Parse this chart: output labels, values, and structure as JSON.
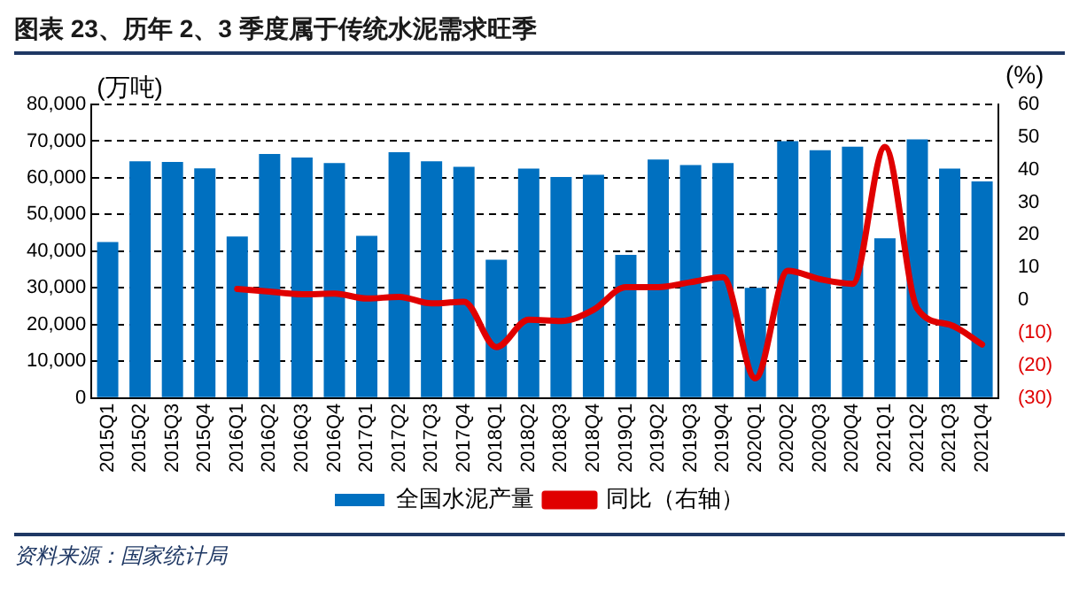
{
  "chart_data": {
    "type": "bar",
    "title": "图表 23、历年 2、3 季度属于传统水泥需求旺季",
    "categories": [
      "2015Q1",
      "2015Q2",
      "2015Q3",
      "2015Q4",
      "2016Q1",
      "2016Q2",
      "2016Q3",
      "2016Q4",
      "2017Q1",
      "2017Q2",
      "2017Q3",
      "2017Q4",
      "2018Q1",
      "2018Q2",
      "2018Q3",
      "2018Q4",
      "2019Q1",
      "2019Q2",
      "2019Q3",
      "2019Q4",
      "2020Q1",
      "2020Q2",
      "2020Q3",
      "2020Q4",
      "2021Q1",
      "2021Q2",
      "2021Q3",
      "2021Q4"
    ],
    "series": [
      {
        "name": "全国水泥产量",
        "color": "#0070c0",
        "values": [
          42500,
          64500,
          64300,
          62600,
          44000,
          66500,
          65500,
          64000,
          44200,
          67000,
          64500,
          63000,
          37700,
          62500,
          60200,
          60800,
          39000,
          65000,
          63500,
          64000,
          30000,
          70000,
          67500,
          68500,
          43500,
          70500,
          62500,
          59000
        ]
      },
      {
        "name": "同比（右轴）",
        "type": "line",
        "axis": "y2",
        "color": "#e00000",
        "values": [
          null,
          null,
          null,
          null,
          3.4,
          2.6,
          1.8,
          2,
          0.5,
          1,
          -1,
          -0.5,
          -14.4,
          -6,
          -6.4,
          -3,
          4,
          4,
          5.5,
          7,
          -24,
          9,
          6.4,
          5,
          47,
          -2.6,
          -7.5,
          -13.6
        ]
      }
    ],
    "ylabel": "(万吨)",
    "y2label": "(%)",
    "ylim": [
      0,
      80000
    ],
    "yticks": [
      {
        "value": 0,
        "label": "0"
      },
      {
        "value": 10000,
        "label": "10,000"
      },
      {
        "value": 20000,
        "label": "20,000"
      },
      {
        "value": 30000,
        "label": "30,000"
      },
      {
        "value": 40000,
        "label": "40,000"
      },
      {
        "value": 50000,
        "label": "50,000"
      },
      {
        "value": 60000,
        "label": "60,000"
      },
      {
        "value": 70000,
        "label": "70,000"
      },
      {
        "value": 80000,
        "label": "80,000"
      }
    ],
    "y2lim": [
      -30,
      60
    ],
    "y2ticks": [
      {
        "value": -30,
        "label": "(30)"
      },
      {
        "value": -20,
        "label": "(20)"
      },
      {
        "value": -10,
        "label": "(10)"
      },
      0,
      10,
      20,
      30,
      40,
      50,
      60
    ],
    "grid": "y",
    "legend": "bottom",
    "marker": "none",
    "line_style": "solid",
    "annotations": [
      "资料来源：国家统计局"
    ]
  }
}
